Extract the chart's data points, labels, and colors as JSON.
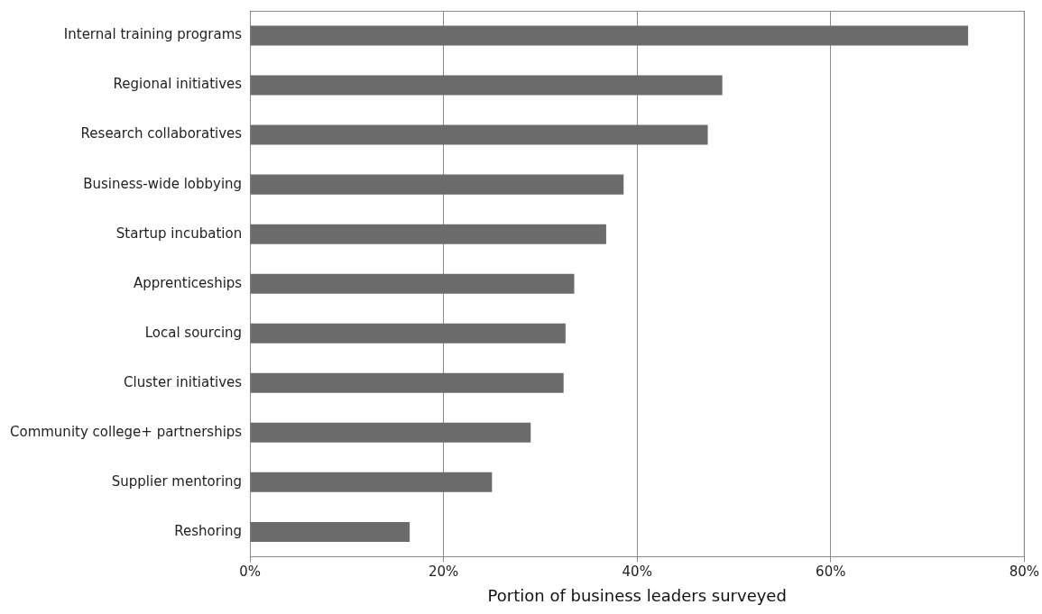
{
  "chart_data": {
    "type": "bar",
    "orientation": "horizontal",
    "xlabel": "Portion of business leaders surveyed",
    "categories": [
      "Internal training programs",
      "Regional initiatives",
      "Research collaboratives",
      "Business-wide lobbying",
      "Startup incubation",
      "Apprenticeships",
      "Local sourcing",
      "Cluster initiatives",
      "Community college+ partnerships",
      "Supplier mentoring",
      "Reshoring"
    ],
    "values": [
      74.2,
      48.8,
      47.3,
      38.6,
      36.8,
      33.5,
      32.6,
      32.4,
      29.0,
      25.0,
      16.5
    ],
    "color": "#6b6b6b",
    "xlim": [
      0,
      80
    ],
    "xticks": [
      {
        "value": 0,
        "label": "0%"
      },
      {
        "value": 20,
        "label": "20%"
      },
      {
        "value": 40,
        "label": "40%"
      },
      {
        "value": 60,
        "label": "60%"
      },
      {
        "value": 80,
        "label": "80%"
      }
    ],
    "grid": "x",
    "legend": false
  }
}
